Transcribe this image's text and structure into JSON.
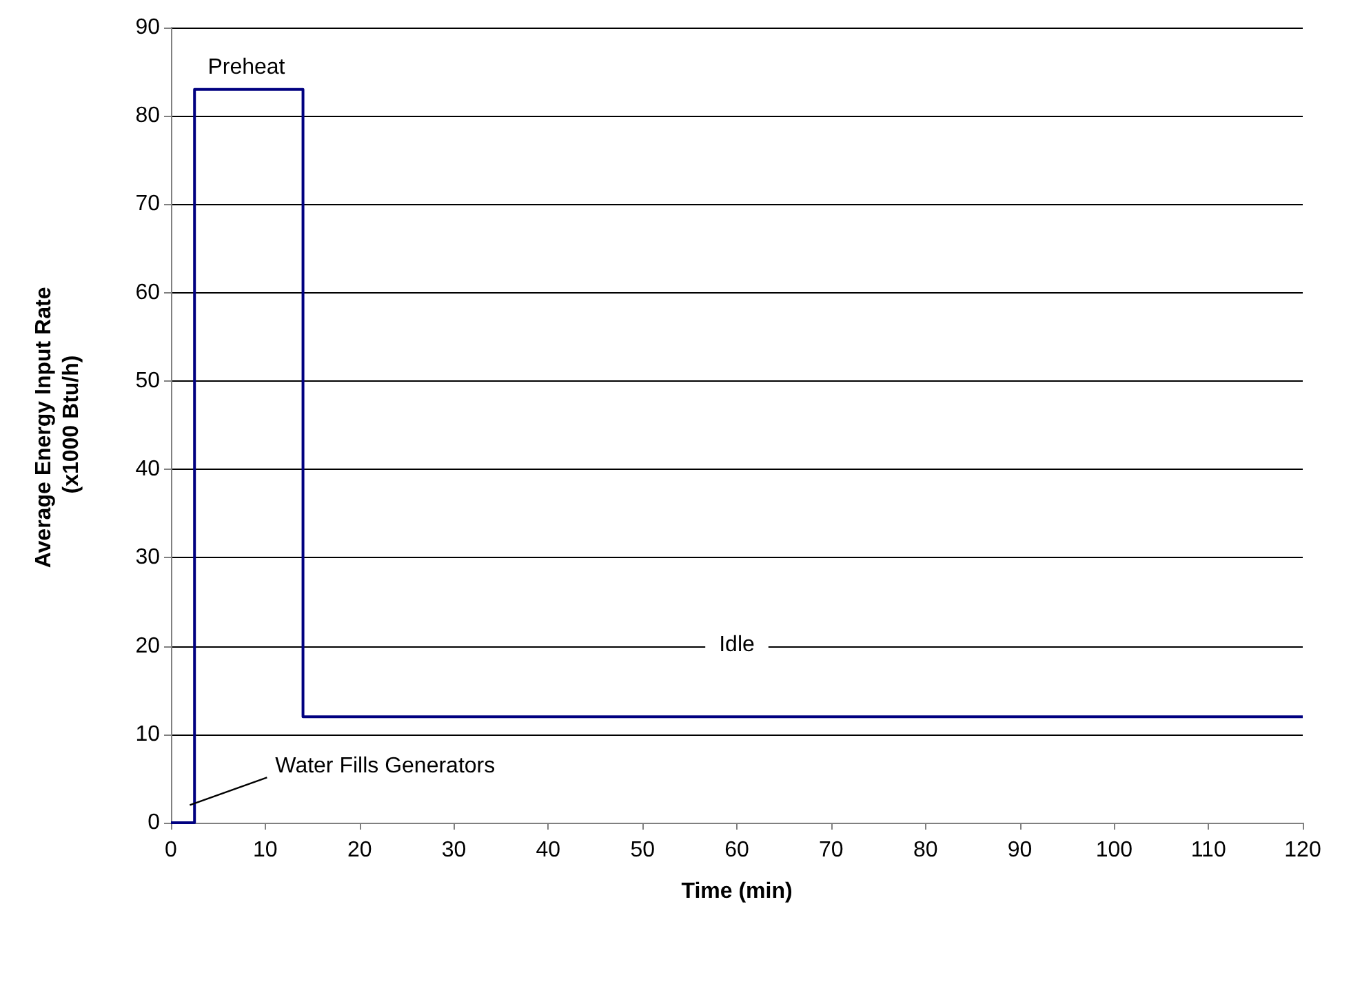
{
  "chart_data": {
    "type": "line",
    "xlabel": "Time (min)",
    "ylabel": "Average Energy Input Rate (x1000 Btu/h)",
    "x": [
      0,
      2.5,
      2.5,
      14,
      14,
      120
    ],
    "series": [
      {
        "color": "#000080",
        "values": [
          0,
          0,
          83,
          83,
          12,
          12
        ]
      }
    ],
    "xlim": [
      0,
      120
    ],
    "xticks": [
      0,
      10,
      20,
      30,
      40,
      50,
      60,
      70,
      80,
      90,
      100,
      110,
      120
    ],
    "ylim": [
      0,
      90
    ],
    "yticks": [
      0,
      10,
      20,
      30,
      40,
      50,
      60,
      70,
      80,
      90
    ],
    "grid": "y",
    "marker": "none",
    "line_style": "solid",
    "annotations": [
      {
        "text": "Preheat",
        "x": 8,
        "y": 83
      },
      "Idle",
      {
        "text": "Water Fills Generators",
        "x": 2,
        "y": 2
      }
    ]
  }
}
